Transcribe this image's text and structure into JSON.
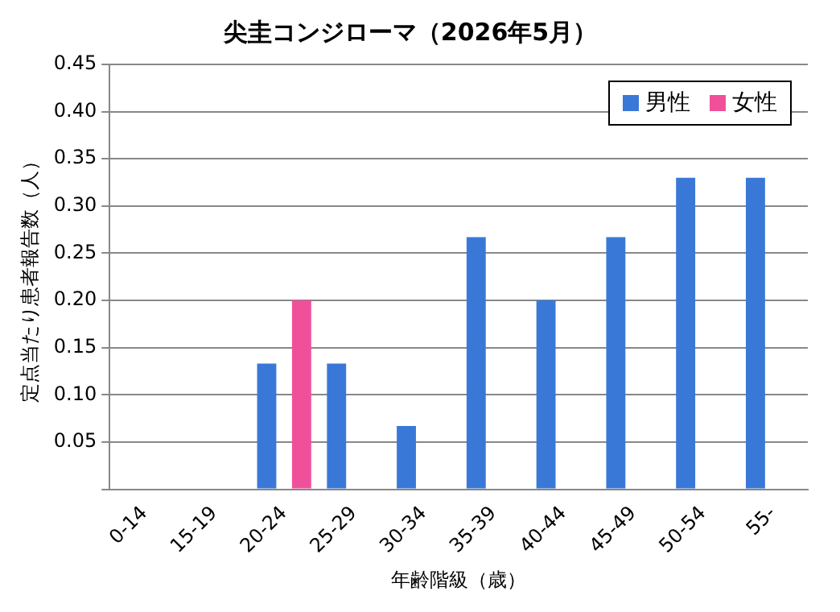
{
  "chart_data": {
    "type": "bar",
    "title": "尖圭コンジローマ（2026年5月）",
    "xlabel": "年齢階級（歳）",
    "ylabel": "定点当たり患者報告数（人）",
    "categories": [
      "0-14",
      "15-19",
      "20-24",
      "25-29",
      "30-34",
      "35-39",
      "40-44",
      "45-49",
      "50-54",
      "55-"
    ],
    "series": [
      {
        "name": "男性",
        "color": "#3a78d8",
        "values": [
          null,
          null,
          0.133,
          0.133,
          0.067,
          0.267,
          0.2,
          0.267,
          0.33,
          0.33
        ]
      },
      {
        "name": "女性",
        "color": "#f0509a",
        "values": [
          null,
          null,
          0.2,
          null,
          null,
          null,
          null,
          null,
          null,
          null
        ]
      }
    ],
    "ylim": [
      0,
      0.45
    ],
    "yticks": [
      {
        "value": 0,
        "label": null
      },
      {
        "value": 0.05,
        "label": "0.05"
      },
      {
        "value": 0.1,
        "label": "0.10"
      },
      {
        "value": 0.15,
        "label": "0.15"
      },
      {
        "value": 0.2,
        "label": "0.20"
      },
      {
        "value": 0.25,
        "label": "0.25"
      },
      {
        "value": 0.3,
        "label": "0.30"
      },
      {
        "value": 0.35,
        "label": "0.35"
      },
      {
        "value": 0.4,
        "label": "0.40"
      },
      {
        "value": 0.45,
        "label": "0.45"
      }
    ],
    "grid": "y",
    "legend": "top right"
  }
}
